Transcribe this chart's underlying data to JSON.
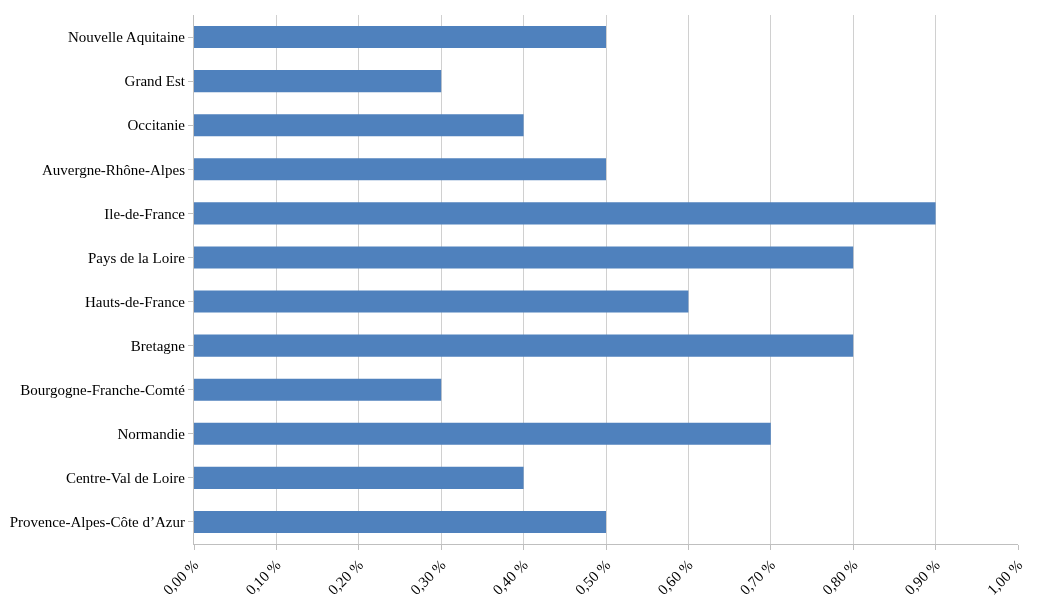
{
  "chart_data": {
    "type": "bar",
    "orientation": "horizontal",
    "categories": [
      "Nouvelle Aquitaine",
      "Grand Est",
      "Occitanie",
      "Auvergne-Rhône-Alpes",
      "Ile-de-France",
      "Pays de la Loire",
      "Hauts-de-France",
      "Bretagne",
      "Bourgogne-Franche-Comté",
      "Normandie",
      "Centre-Val de Loire",
      "Provence-Alpes-Côte d’Azur"
    ],
    "values": [
      0.5,
      0.3,
      0.4,
      0.5,
      0.9,
      0.8,
      0.6,
      0.8,
      0.3,
      0.7,
      0.4,
      0.5
    ],
    "color": "#4f81bd",
    "xlim": [
      0,
      1
    ],
    "xticks": [
      {
        "value": 0,
        "label": "0,00 %"
      },
      {
        "value": 0.1,
        "label": "0,10 %"
      },
      {
        "value": 0.2,
        "label": "0,20 %"
      },
      {
        "value": 0.3,
        "label": "0,30 %"
      },
      {
        "value": 0.4,
        "label": "0,40 %"
      },
      {
        "value": 0.5,
        "label": "0,50 %"
      },
      {
        "value": 0.6,
        "label": "0,60 %"
      },
      {
        "value": 0.7,
        "label": "0,70 %"
      },
      {
        "value": 0.8,
        "label": "0,80 %"
      },
      {
        "value": 0.9,
        "label": "0,90 %"
      },
      {
        "value": 1,
        "label": "1,00 %"
      }
    ],
    "grid": "x"
  }
}
